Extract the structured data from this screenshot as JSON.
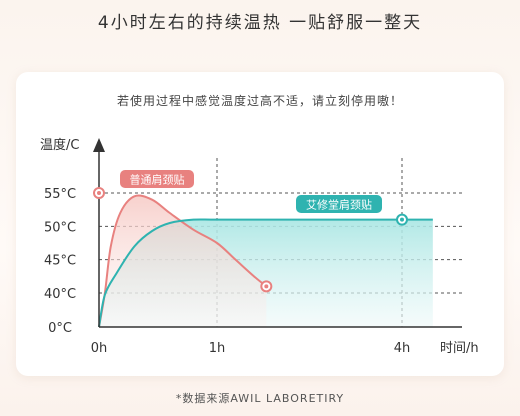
{
  "headline": "4小时左右的持续温热  一贴舒服一整天",
  "warning": "若使用过程中感觉温度过高不适，请立刻停用嗷！",
  "footnote": "*数据来源AWIL LABORETIRY",
  "chart_data": {
    "type": "line",
    "ylabel": "温度/C",
    "xlabel": "时间/h",
    "y_ticks": [
      {
        "label": "0°C",
        "value": 0
      },
      {
        "label": "40°C",
        "value": 40
      },
      {
        "label": "45°C",
        "value": 45
      },
      {
        "label": "50°C",
        "value": 50
      },
      {
        "label": "55°C",
        "value": 55
      }
    ],
    "x_ticks": [
      {
        "label": "0h",
        "value": 0
      },
      {
        "label": "1h",
        "value": 1
      },
      {
        "label": "4h",
        "value": 4
      }
    ],
    "series": [
      {
        "name": "普通肩颈贴",
        "color": "#e8817f",
        "points": [
          [
            0,
            0
          ],
          [
            0.05,
            40
          ],
          [
            0.1,
            47
          ],
          [
            0.18,
            52
          ],
          [
            0.3,
            54.5
          ],
          [
            0.45,
            54
          ],
          [
            0.6,
            52
          ],
          [
            0.8,
            49.5
          ],
          [
            1.0,
            47.5
          ],
          [
            1.3,
            45
          ],
          [
            1.6,
            42.5
          ],
          [
            1.8,
            41
          ]
        ]
      },
      {
        "name": "艾修堂肩颈贴",
        "color": "#2fb3b0",
        "points": [
          [
            0,
            0
          ],
          [
            0.05,
            38
          ],
          [
            0.15,
            43
          ],
          [
            0.3,
            47
          ],
          [
            0.45,
            49.3
          ],
          [
            0.6,
            50.5
          ],
          [
            0.8,
            51
          ],
          [
            1.0,
            51
          ],
          [
            2.0,
            51
          ],
          [
            3.0,
            51
          ],
          [
            4.0,
            51
          ],
          [
            4.5,
            51
          ]
        ]
      }
    ]
  }
}
